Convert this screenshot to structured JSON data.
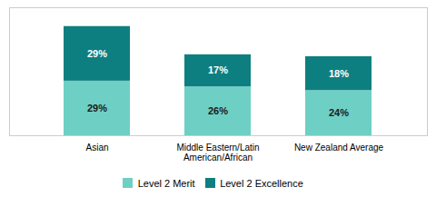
{
  "chart_data": {
    "type": "bar",
    "stacked": true,
    "categories": [
      "Asian",
      "Middle Eastern/Latin\nAmerican/African",
      "New Zealand Average"
    ],
    "series": [
      {
        "name": "Level 2 Merit",
        "color": "#6ecfc4",
        "values": [
          29,
          26,
          24
        ],
        "value_labels": [
          "29%",
          "26%",
          "24%"
        ]
      },
      {
        "name": "Level 2 Excellence",
        "color": "#0e7f80",
        "values": [
          29,
          17,
          18
        ],
        "value_labels": [
          "29%",
          "17%",
          "18%"
        ]
      }
    ],
    "ylim": [
      0,
      68
    ],
    "data_labels": true,
    "tick_labels": "x",
    "grid": false,
    "legend": "bottom"
  }
}
